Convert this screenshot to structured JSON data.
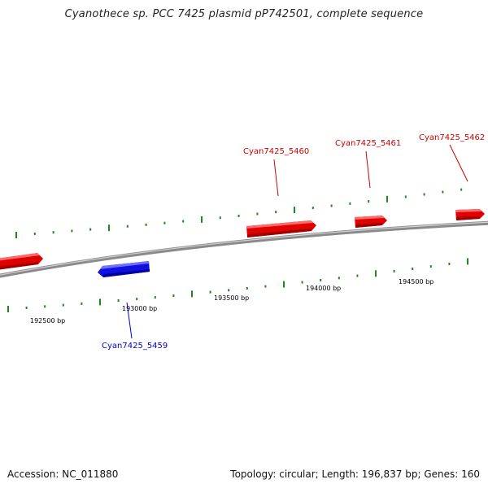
{
  "title": "Cyanothece sp. PCC 7425 plasmid pP742501, complete sequence",
  "accession_text": "Accession: NC_011880",
  "summary": {
    "topology": "circular",
    "length": "196,837 bp",
    "genes": "160",
    "text": "Topology: circular; Length: 196,837 bp; Genes: 160"
  },
  "colors": {
    "forward_gene": "#ff0000",
    "reverse_gene": "#0000ff",
    "backbone": "#8a8a8a",
    "tick": "#1a8a1a"
  },
  "ticks": {
    "labels": [
      "192500 bp",
      "193000 bp",
      "193500 bp",
      "194000 bp",
      "194500 bp"
    ]
  },
  "genes": [
    {
      "name": "Cyan7425_5460",
      "strand": "forward"
    },
    {
      "name": "Cyan7425_5461",
      "strand": "forward"
    },
    {
      "name": "Cyan7425_5462",
      "strand": "forward"
    },
    {
      "name": "Cyan7425_5459",
      "strand": "reverse"
    }
  ]
}
